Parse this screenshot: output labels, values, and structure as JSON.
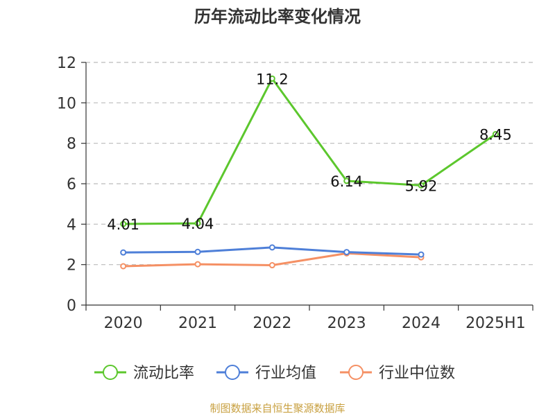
{
  "chart_data": {
    "type": "line",
    "title": "历年流动比率变化情况",
    "categories": [
      "2020",
      "2021",
      "2022",
      "2023",
      "2024",
      "2025H1"
    ],
    "ylim": [
      0,
      12
    ],
    "yticks": [
      0,
      2,
      4,
      6,
      8,
      10,
      12
    ],
    "grid": true,
    "legend_position": "bottom",
    "series": [
      {
        "name": "流动比率",
        "color": "#5cc72d",
        "values": [
          4.01,
          4.04,
          11.2,
          6.14,
          5.92,
          8.45
        ],
        "labels": [
          "4.01",
          "4.04",
          "11.2",
          "6.14",
          "5.92",
          "8.45"
        ]
      },
      {
        "name": "行业均值",
        "color": "#4e7fd8",
        "values": [
          2.6,
          2.63,
          2.85,
          2.62,
          2.5,
          null
        ]
      },
      {
        "name": "行业中位数",
        "color": "#f59064",
        "values": [
          1.92,
          2.02,
          1.97,
          2.56,
          2.36,
          null
        ]
      }
    ]
  },
  "footer": {
    "source": "制图数据来自恒生聚源数据库"
  }
}
